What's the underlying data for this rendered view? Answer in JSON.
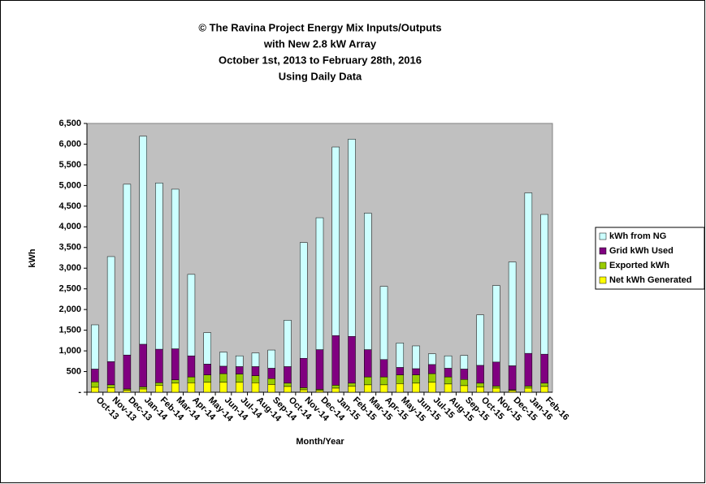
{
  "chart_data": {
    "type": "stacked_bar",
    "title": [
      "© The Ravina Project Energy Mix Inputs/Outputs",
      "with New 2.8 kW Array",
      "October 1st, 2013 to February 28th, 2016",
      "Using Daily Data"
    ],
    "x_label": "Month/Year",
    "y_label": "kWh",
    "categories": [
      "Oct-13",
      "Nov-13",
      "Dec-13",
      "Jan-14",
      "Feb-14",
      "Mar-14",
      "Apr-14",
      "May-14",
      "Jun-14",
      "Jul-14",
      "Aug-14",
      "Sep-14",
      "Oct-14",
      "Nov-14",
      "Dec-14",
      "Jan-15",
      "Feb-15",
      "Mar-15",
      "Apr-15",
      "May-15",
      "Jun-15",
      "Jul-15",
      "Aug-15",
      "Sep-15",
      "Oct-15",
      "Nov-15",
      "Dec-15",
      "Jan-16",
      "Feb-16"
    ],
    "series": [
      {
        "name": "Net kWh Generated",
        "color": "#ffff00",
        "values": [
          120,
          110,
          50,
          80,
          170,
          220,
          230,
          240,
          240,
          240,
          230,
          190,
          140,
          60,
          40,
          100,
          150,
          180,
          180,
          210,
          220,
          240,
          200,
          160,
          130,
          100,
          40,
          100,
          140
        ]
      },
      {
        "name": "Exported kWh",
        "color": "#99cc00",
        "values": [
          130,
          70,
          30,
          50,
          60,
          80,
          140,
          180,
          210,
          200,
          170,
          140,
          80,
          50,
          30,
          70,
          70,
          190,
          190,
          210,
          200,
          210,
          170,
          150,
          90,
          50,
          20,
          50,
          80
        ]
      },
      {
        "name": "Grid kWh Used",
        "color": "#800080",
        "values": [
          310,
          560,
          820,
          1030,
          810,
          750,
          510,
          260,
          180,
          180,
          220,
          250,
          400,
          710,
          960,
          1200,
          1130,
          660,
          420,
          180,
          150,
          220,
          210,
          250,
          430,
          580,
          580,
          790,
          700
        ]
      },
      {
        "name": "kWh from NG",
        "color": "#ccffff",
        "values": [
          1070,
          2540,
          4130,
          5030,
          4020,
          3860,
          1970,
          760,
          340,
          260,
          330,
          440,
          1120,
          2800,
          3190,
          4560,
          4770,
          3300,
          1770,
          590,
          550,
          260,
          300,
          330,
          1220,
          1850,
          2510,
          3880,
          3380
        ]
      }
    ],
    "ylim": [
      0,
      6500
    ],
    "yticks": [
      {
        "value": 0,
        "label": "-"
      },
      {
        "value": 500,
        "label": "500"
      },
      {
        "value": 1000,
        "label": "1,000"
      },
      {
        "value": 1500,
        "label": "1,500"
      },
      {
        "value": 2000,
        "label": "2,000"
      },
      {
        "value": 2500,
        "label": "2,500"
      },
      {
        "value": 3000,
        "label": "3,000"
      },
      {
        "value": 3500,
        "label": "3,500"
      },
      {
        "value": 4000,
        "label": "4,000"
      },
      {
        "value": 4500,
        "label": "4,500"
      },
      {
        "value": 5000,
        "label": "5,000"
      },
      {
        "value": 5500,
        "label": "5,500"
      },
      {
        "value": 6000,
        "label": "6,000"
      },
      {
        "value": 6500,
        "label": "6,500"
      }
    ],
    "grid": false,
    "legend": "right",
    "plot_background": "#c0c0c0"
  }
}
